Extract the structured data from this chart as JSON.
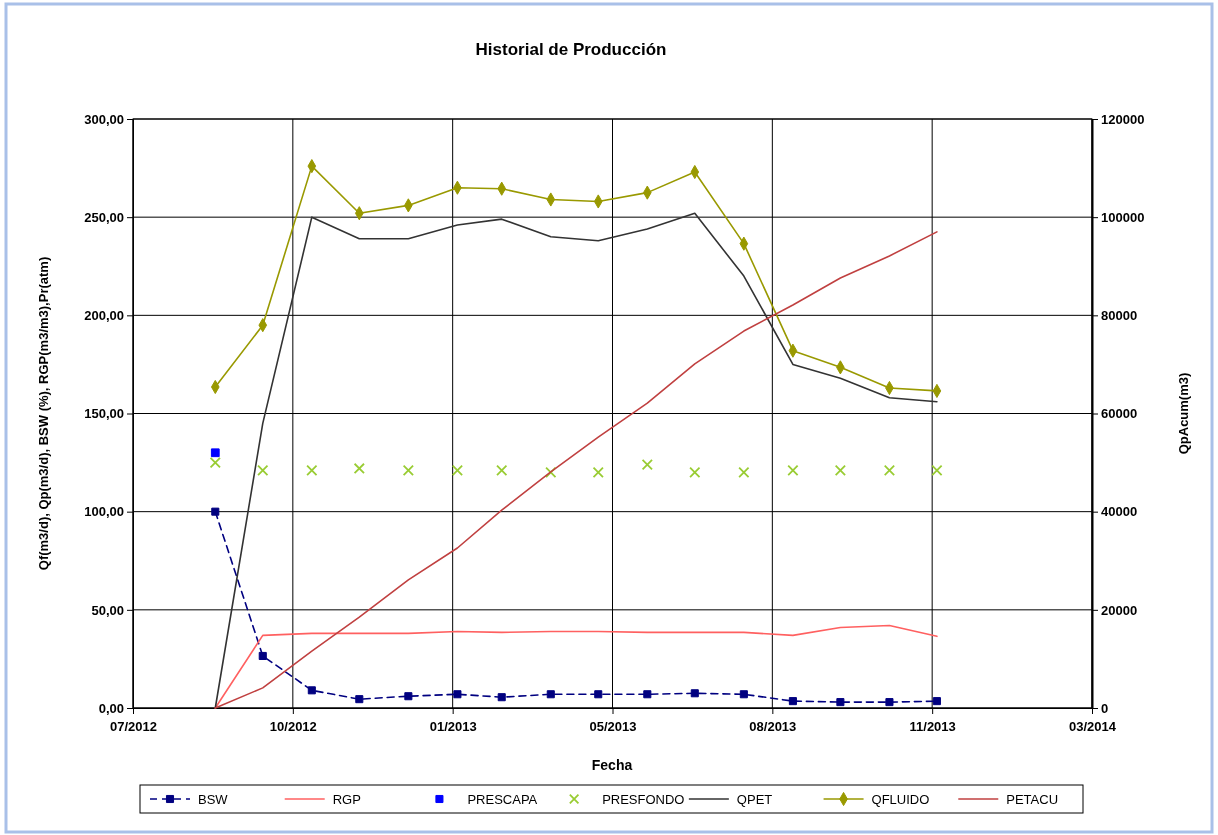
{
  "chart_data": {
    "type": "line",
    "title": "Historial de Producción",
    "xlabel": "Fecha",
    "ylabel": "Qf(m3/d),  Qp(m3/d),  BSW (%),  RGP(m3/m3),Pr(atm)",
    "y2label": "QpAcum(m3)",
    "x": [
      "2012-09-01",
      "2012-10-01",
      "2012-11-01",
      "2012-12-01",
      "2013-01-01",
      "2013-02-01",
      "2013-03-01",
      "2013-04-01",
      "2013-05-01",
      "2013-06-01",
      "2013-07-01",
      "2013-08-01",
      "2013-09-01",
      "2013-10-01",
      "2013-11-01",
      "2013-12-01"
    ],
    "xlim": [
      "2012-07-11",
      "2014-03-09"
    ],
    "xticks": [
      {
        "value": "2012-07-11",
        "label": "07/2012"
      },
      {
        "value": "2012-10-20",
        "label": "10/2012"
      },
      {
        "value": "2013-01-29",
        "label": "01/2013"
      },
      {
        "value": "2013-05-10",
        "label": "05/2013"
      },
      {
        "value": "2013-08-19",
        "label": "08/2013"
      },
      {
        "value": "2013-11-28",
        "label": "11/2013"
      },
      {
        "value": "2014-03-09",
        "label": "03/2014"
      }
    ],
    "ylim": [
      0,
      300
    ],
    "yticks": [
      {
        "value": 0,
        "label": "0,00"
      },
      {
        "value": 50,
        "label": "50,00"
      },
      {
        "value": 100,
        "label": "100,00"
      },
      {
        "value": 150,
        "label": "150,00"
      },
      {
        "value": 200,
        "label": "200,00"
      },
      {
        "value": 250,
        "label": "250,00"
      },
      {
        "value": 300,
        "label": "300,00"
      }
    ],
    "y2lim": [
      0,
      120000
    ],
    "y2ticks": [
      0,
      20000,
      40000,
      60000,
      80000,
      100000,
      120000
    ],
    "grid": true,
    "legend": "bottom",
    "series": [
      {
        "name": "BSW",
        "color": "#000080",
        "marker": "square",
        "line_style": "dashed",
        "values": [
          100,
          26.5,
          9,
          4.5,
          6,
          7,
          5.5,
          7,
          7,
          7,
          7.5,
          7,
          3.5,
          3,
          3,
          3.5
        ]
      },
      {
        "name": "RGP",
        "color": "#ff6060",
        "marker": "none",
        "line_style": "solid",
        "values": [
          0,
          37,
          38,
          38,
          38,
          39,
          38.5,
          39,
          39,
          38.5,
          38.5,
          38.5,
          37,
          41,
          42,
          36.5
        ]
      },
      {
        "name": "PRESCAPA",
        "type": "scatter",
        "color": "#0000ff",
        "marker": "square",
        "values": [
          130,
          null,
          null,
          null,
          null,
          null,
          null,
          null,
          null,
          null,
          null,
          null,
          null,
          null,
          null,
          null
        ]
      },
      {
        "name": "PRESFONDO",
        "type": "scatter",
        "color": "#99cc33",
        "marker": "cross",
        "values": [
          125,
          121,
          121,
          122,
          121,
          121,
          121,
          120,
          120,
          124,
          120,
          120,
          121,
          121,
          121,
          121
        ]
      },
      {
        "name": "QPET",
        "color": "#333333",
        "marker": "none",
        "line_style": "solid",
        "values": [
          0,
          145,
          250,
          239,
          239,
          246,
          249,
          240,
          238,
          244,
          252,
          220,
          175,
          168,
          158,
          156
        ]
      },
      {
        "name": "QFLUIDO",
        "color": "#999900",
        "marker": "diamond",
        "line_style": "solid",
        "values": [
          163.5,
          195,
          276,
          252,
          256,
          265,
          264.5,
          259,
          258,
          262.5,
          273,
          236.5,
          182,
          173.5,
          163,
          161.5
        ]
      },
      {
        "name": "PETACU",
        "axis": "y2",
        "color": "#c04040",
        "marker": "none",
        "line_style": "solid",
        "values": [
          0,
          4100,
          11600,
          18500,
          26100,
          32600,
          40300,
          48100,
          55200,
          62100,
          70100,
          76800,
          82100,
          87600,
          92100,
          97000
        ]
      }
    ]
  }
}
